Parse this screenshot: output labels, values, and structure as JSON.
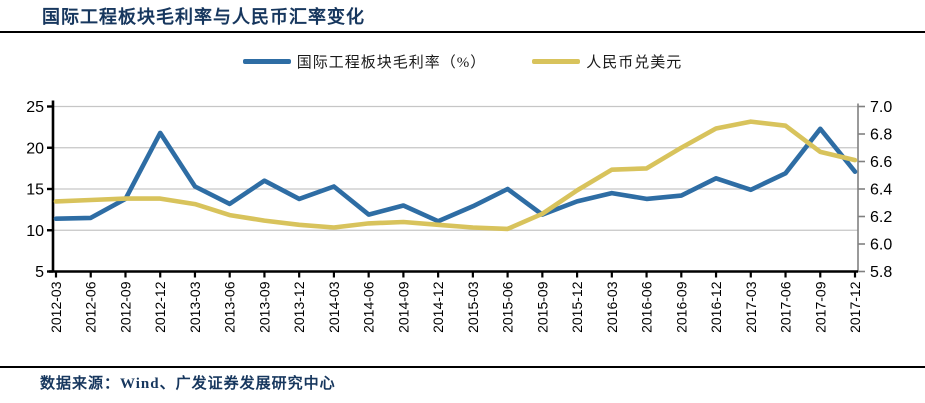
{
  "title": "国际工程板块毛利率与人民币汇率变化",
  "source": "数据来源：Wind、广发证券发展研究中心",
  "legend": [
    {
      "label": "国际工程板块毛利率（%）",
      "color": "#2E6DA4"
    },
    {
      "label": "人民币兑美元",
      "color": "#D8C35C"
    }
  ],
  "colors": {
    "title_text": "#17375E",
    "blue_line": "#2E6DA4",
    "yellow_line": "#D8C35C",
    "gridline": "#C6C6C6",
    "axis_black": "#000000",
    "axis_gray": "#808080",
    "tick_text": "#000000"
  },
  "chart_data": {
    "type": "line",
    "title": "国际工程板块毛利率与人民币汇率变化",
    "categories": [
      "2012-03",
      "2012-06",
      "2012-09",
      "2012-12",
      "2013-03",
      "2013-06",
      "2013-09",
      "2013-12",
      "2014-03",
      "2014-06",
      "2014-09",
      "2014-12",
      "2015-03",
      "2015-06",
      "2015-09",
      "2015-12",
      "2016-03",
      "2016-06",
      "2016-09",
      "2016-12",
      "2017-03",
      "2017-06",
      "2017-09",
      "2017-12"
    ],
    "series": [
      {
        "name": "国际工程板块毛利率（%）",
        "axis": "left",
        "color": "#2E6DA4",
        "values": [
          11.4,
          11.5,
          13.8,
          21.8,
          15.3,
          13.2,
          16.0,
          13.8,
          15.3,
          11.9,
          13.0,
          11.1,
          12.9,
          15.0,
          11.9,
          13.5,
          14.5,
          13.8,
          14.2,
          16.3,
          14.9,
          16.9,
          22.3,
          17.1
        ]
      },
      {
        "name": "人民币兑美元",
        "axis": "right",
        "color": "#D8C35C",
        "values": [
          6.31,
          6.32,
          6.33,
          6.33,
          6.29,
          6.21,
          6.17,
          6.14,
          6.12,
          6.15,
          6.16,
          6.14,
          6.12,
          6.11,
          6.22,
          6.39,
          6.54,
          6.55,
          6.7,
          6.84,
          6.89,
          6.86,
          6.67,
          6.61
        ]
      }
    ],
    "left_axis": {
      "min": 5,
      "max": 25,
      "tick_labels_top_down": [
        "25",
        "20",
        "15",
        "10",
        "5"
      ]
    },
    "right_axis": {
      "min": 5.8,
      "max": 7.0,
      "tick_labels_top_down": [
        "7.0",
        "6.8",
        "6.6",
        "6.4",
        "6.2",
        "6.0",
        "5.8"
      ]
    },
    "grid": true,
    "legend_position": "top"
  }
}
